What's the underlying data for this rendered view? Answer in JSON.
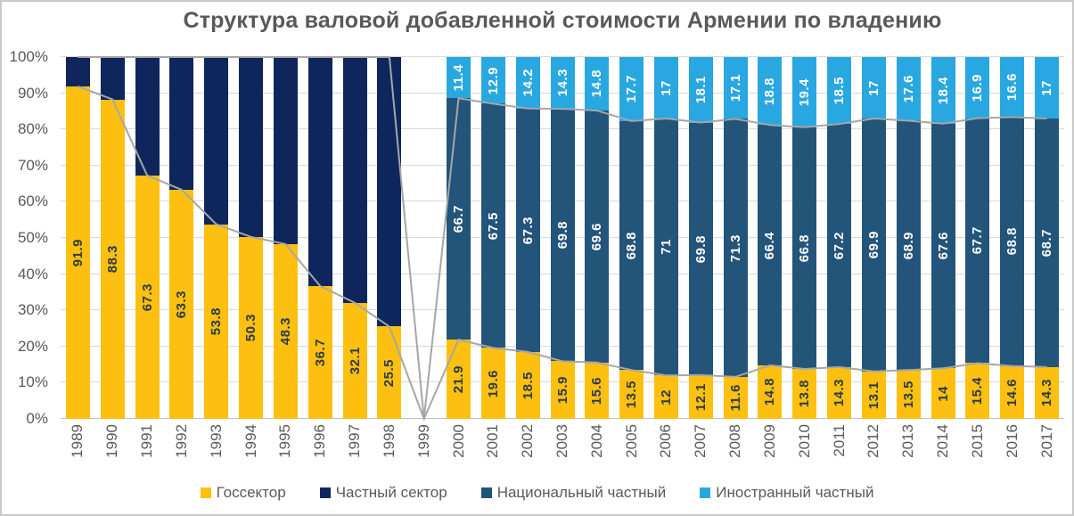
{
  "chart_data": {
    "type": "stacked-bar",
    "title": "Структура валовой добавленной стоимости Армении по владению",
    "y_ticks": [
      "0%",
      "10%",
      "20%",
      "30%",
      "40%",
      "50%",
      "60%",
      "70%",
      "80%",
      "90%",
      "100%"
    ],
    "ylim": [
      0,
      100
    ],
    "grid": true,
    "legend_position": "bottom",
    "categories": [
      "1989",
      "1990",
      "1991",
      "1992",
      "1993",
      "1994",
      "1995",
      "1996",
      "1997",
      "1998",
      "1999",
      "2000",
      "2001",
      "2002",
      "2003",
      "2004",
      "2005",
      "2006",
      "2007",
      "2008",
      "2009",
      "2010",
      "2011",
      "2012",
      "2013",
      "2014",
      "2015",
      "2016",
      "2017"
    ],
    "series": [
      {
        "name": "Госсектор",
        "color": "#FDC010",
        "label_color": "#2b3a4f",
        "heights": [
          91.9,
          88.3,
          67.3,
          63.3,
          53.8,
          50.3,
          48.3,
          36.7,
          32.1,
          25.5,
          0,
          21.9,
          19.6,
          18.5,
          15.9,
          15.6,
          13.5,
          12,
          12.1,
          11.6,
          14.8,
          13.8,
          14.3,
          13.1,
          13.5,
          14,
          15.4,
          14.6,
          14.3
        ],
        "labels": [
          "91.9",
          "88.3",
          "67.3",
          "63.3",
          "53.8",
          "50.3",
          "48.3",
          "36.7",
          "32.1",
          "25.5",
          "",
          "21.9",
          "19.6",
          "18.5",
          "15.9",
          "15.6",
          "13.5",
          "12",
          "12.1",
          "11.6",
          "14.8",
          "13.8",
          "14.3",
          "13.1",
          "13.5",
          "14",
          "15.4",
          "14.6",
          "14.3"
        ]
      },
      {
        "name": "Частный сектор",
        "color": "#0E265C",
        "label_color": "#ffffff",
        "heights": [
          8.1,
          11.7,
          32.7,
          36.7,
          46.2,
          49.7,
          51.7,
          63.3,
          67.9,
          74.5,
          0,
          0,
          0,
          0,
          0,
          0,
          0,
          0,
          0,
          0,
          0,
          0,
          0,
          0,
          0,
          0,
          0,
          0,
          0
        ],
        "labels": [
          "",
          "",
          "",
          "",
          "",
          "",
          "",
          "",
          "",
          "",
          "",
          "",
          "",
          "",
          "",
          "",
          "",
          "",
          "",
          "",
          "",
          "",
          "",
          "",
          "",
          "",
          "",
          "",
          ""
        ]
      },
      {
        "name": "Национальный частный",
        "color": "#235479",
        "label_color": "#ffffff",
        "heights": [
          0,
          0,
          0,
          0,
          0,
          0,
          0,
          0,
          0,
          0,
          0,
          66.7,
          67.5,
          67.3,
          69.8,
          69.6,
          68.8,
          71,
          69.8,
          71.3,
          66.4,
          66.8,
          67.2,
          69.9,
          68.9,
          67.6,
          67.7,
          68.8,
          68.7
        ],
        "labels": [
          "",
          "",
          "",
          "",
          "",
          "",
          "",
          "",
          "",
          "",
          "",
          "66.7",
          "67.5",
          "67.3",
          "69.8",
          "69.6",
          "68.8",
          "71",
          "69.8",
          "71.3",
          "66.4",
          "66.8",
          "67.2",
          "69.9",
          "68.9",
          "67.6",
          "67.7",
          "68.8",
          "68.7"
        ]
      },
      {
        "name": "Иностранный частный",
        "color": "#29A7E0",
        "label_color": "#ffffff",
        "heights": [
          0,
          0,
          0,
          0,
          0,
          0,
          0,
          0,
          0,
          0,
          0,
          11.4,
          12.9,
          14.2,
          14.3,
          14.8,
          17.7,
          17,
          18.1,
          17.1,
          18.8,
          19.4,
          18.5,
          17,
          17.6,
          18.4,
          16.9,
          16.6,
          17
        ],
        "labels": [
          "",
          "",
          "",
          "",
          "",
          "",
          "",
          "",
          "",
          "",
          "",
          "11.4",
          "12.9",
          "14.2",
          "14.3",
          "14.8",
          "17.7",
          "17",
          "18.1",
          "17.1",
          "18.8",
          "19.4",
          "18.5",
          "17",
          "17.6",
          "18.4",
          "16.9",
          "16.6",
          "17"
        ]
      }
    ],
    "overlay_lines": {
      "color": "#A6A6A6",
      "after_series": [
        0,
        2
      ]
    },
    "colors": {
      "title_text": "#595959",
      "axis_text": "#595959",
      "gridline": "#D9D9D9",
      "axis_line": "#BFBFBF",
      "frame_border": "#C9C9C9"
    }
  }
}
